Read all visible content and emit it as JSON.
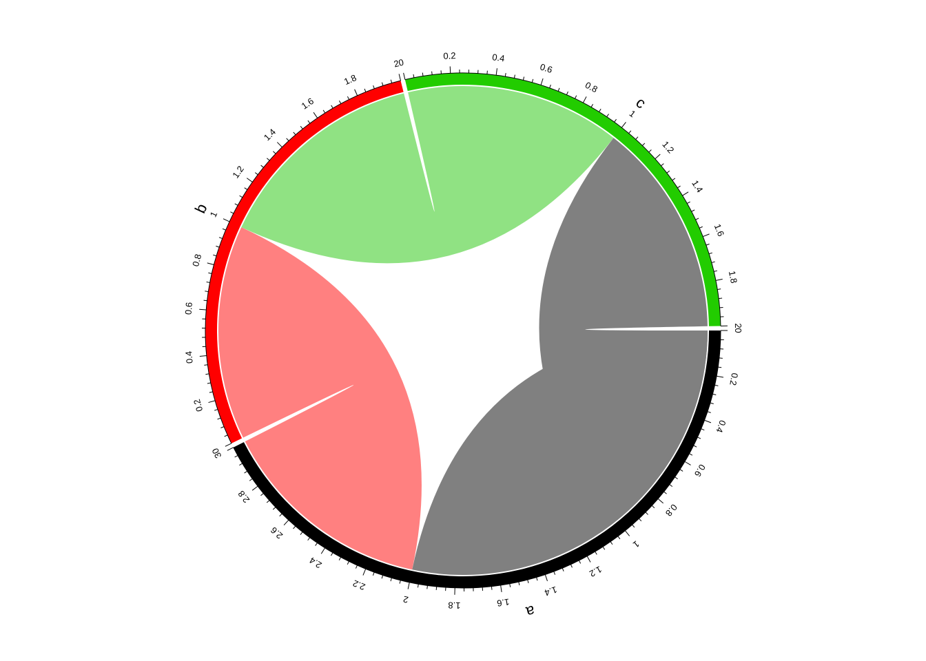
{
  "chart_data": {
    "type": "chord",
    "sectors": [
      {
        "name": "a",
        "range": [
          0,
          3
        ],
        "color": "#000000",
        "tick_labels": [
          "0",
          "0.2",
          "0.4",
          "0.6",
          "0.8",
          "1",
          "1.2",
          "1.4",
          "1.6",
          "1.8",
          "2",
          "2.2",
          "2.4",
          "2.6",
          "2.8",
          "3"
        ]
      },
      {
        "name": "b",
        "range": [
          0,
          2
        ],
        "color": "#FF0000",
        "tick_labels": [
          "0",
          "0.2",
          "0.4",
          "0.6",
          "0.8",
          "1",
          "1.2",
          "1.4",
          "1.6",
          "1.8",
          "2"
        ]
      },
      {
        "name": "c",
        "range": [
          0,
          2
        ],
        "color": "#22CC00",
        "tick_labels": [
          "0",
          "0.2",
          "0.4",
          "0.6",
          "0.8",
          "1",
          "1.2",
          "1.4",
          "1.6",
          "1.8",
          "2"
        ]
      }
    ],
    "links": [
      {
        "from": "a",
        "to": "a",
        "from_range": [
          0,
          1
        ],
        "to_range": [
          1,
          2
        ],
        "value": 1,
        "color": "#808080"
      },
      {
        "from": "a",
        "to": "b",
        "from_range": [
          2,
          3
        ],
        "to_range": [
          0,
          1
        ],
        "value": 1,
        "color": "#FF8080"
      },
      {
        "from": "b",
        "to": "c",
        "from_range": [
          1,
          2
        ],
        "to_range": [
          0,
          1
        ],
        "value": 1,
        "color": "#90E283"
      },
      {
        "from": "c",
        "to": "a",
        "from_range": [
          1,
          2
        ],
        "to_range": [
          0,
          1
        ],
        "value": 1,
        "color": "#808080"
      }
    ]
  }
}
